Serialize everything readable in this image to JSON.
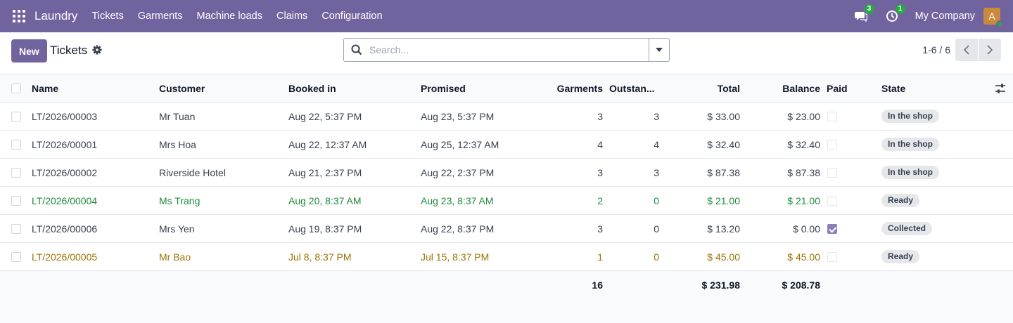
{
  "navbar": {
    "app_name": "Laundry",
    "menu": [
      "Tickets",
      "Garments",
      "Machine loads",
      "Claims",
      "Configuration"
    ],
    "messages_count": "3",
    "activities_count": "1",
    "company": "My Company",
    "avatar_initial": "A",
    "icons": {
      "apps": "grid-icon",
      "messages": "chat-icon",
      "activities": "clock-icon"
    }
  },
  "control": {
    "new_label": "New",
    "title": "Tickets",
    "search_placeholder": "Search...",
    "pager": "1-6 / 6"
  },
  "columns": {
    "name": "Name",
    "customer": "Customer",
    "booked": "Booked in",
    "promised": "Promised",
    "garments": "Garments",
    "outstanding": "Outstan...",
    "total": "Total",
    "balance": "Balance",
    "paid": "Paid",
    "state": "State"
  },
  "rows": [
    {
      "name": "LT/2026/00003",
      "customer": "Mr Tuan",
      "booked": "Aug 22, 5:37 PM",
      "promised": "Aug 23, 5:37 PM",
      "garments": "3",
      "outstanding": "3",
      "total": "$ 33.00",
      "balance": "$ 23.00",
      "paid": false,
      "state": "In the shop",
      "tone": "normal"
    },
    {
      "name": "LT/2026/00001",
      "customer": "Mrs Hoa",
      "booked": "Aug 22, 12:37 AM",
      "promised": "Aug 25, 12:37 AM",
      "garments": "4",
      "outstanding": "4",
      "total": "$ 32.40",
      "balance": "$ 32.40",
      "paid": false,
      "state": "In the shop",
      "tone": "normal"
    },
    {
      "name": "LT/2026/00002",
      "customer": "Riverside Hotel",
      "booked": "Aug 21, 2:37 PM",
      "promised": "Aug 22, 2:37 PM",
      "garments": "3",
      "outstanding": "3",
      "total": "$ 87.38",
      "balance": "$ 87.38",
      "paid": false,
      "state": "In the shop",
      "tone": "normal"
    },
    {
      "name": "LT/2026/00004",
      "customer": "Ms Trang",
      "booked": "Aug 20, 8:37 AM",
      "promised": "Aug 23, 8:37 AM",
      "garments": "2",
      "outstanding": "0",
      "total": "$ 21.00",
      "balance": "$ 21.00",
      "paid": false,
      "state": "Ready",
      "tone": "green"
    },
    {
      "name": "LT/2026/00006",
      "customer": "Mrs Yen",
      "booked": "Aug 19, 8:37 PM",
      "promised": "Aug 22, 8:37 PM",
      "garments": "3",
      "outstanding": "0",
      "total": "$ 13.20",
      "balance": "$ 0.00",
      "paid": true,
      "state": "Collected",
      "tone": "normal"
    },
    {
      "name": "LT/2026/00005",
      "customer": "Mr Bao",
      "booked": "Jul 8, 8:37 PM",
      "promised": "Jul 15, 8:37 PM",
      "garments": "1",
      "outstanding": "0",
      "total": "$ 45.00",
      "balance": "$ 45.00",
      "paid": false,
      "state": "Ready",
      "tone": "amber"
    }
  ],
  "totals": {
    "garments": "16",
    "total": "$ 231.98",
    "balance": "$ 208.78"
  },
  "colors": {
    "brand": "#71639e",
    "green": "#1e8a3a",
    "amber": "#9a7405"
  }
}
